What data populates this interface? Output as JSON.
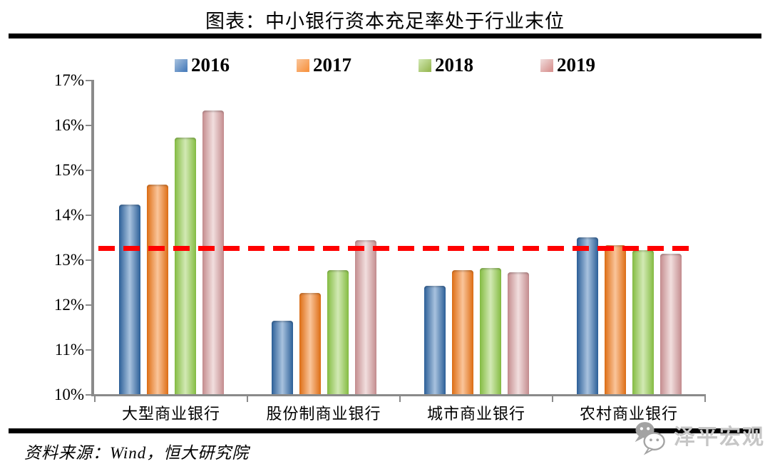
{
  "title": "图表：中小银行资本充足率处于行业末位",
  "source": "资料来源：Wind，恒大研究院",
  "watermark": "泽平宏观",
  "chart_data": {
    "type": "bar",
    "title": "图表：中小银行资本充足率处于行业末位",
    "categories": [
      "大型商业银行",
      "股份制商业银行",
      "城市商业银行",
      "农村商业银行"
    ],
    "series": [
      {
        "name": "2016",
        "color": "#4F81BD",
        "edge": "#2C5F98",
        "light": "#A8C2DE",
        "values": [
          14.23,
          11.63,
          12.42,
          13.5
        ]
      },
      {
        "name": "2017",
        "color": "#F79646",
        "edge": "#DD6D14",
        "light": "#FAC59A",
        "values": [
          14.66,
          12.26,
          12.76,
          13.32
        ]
      },
      {
        "name": "2018",
        "color": "#9BBB59",
        "edge": "#84BC42",
        "light": "#D2E9B4",
        "values": [
          15.72,
          12.77,
          12.81,
          13.21
        ]
      },
      {
        "name": "2019",
        "color": "#D99694",
        "edge": "#C48C8E",
        "light": "#F1DEDE",
        "values": [
          16.32,
          13.43,
          12.71,
          13.13
        ]
      }
    ],
    "xlabel": "",
    "ylabel": "",
    "ylim": [
      10,
      17
    ],
    "ytick_step": 1,
    "ytick_suffix": "%",
    "yticks": [
      "17%",
      "16%",
      "15%",
      "14%",
      "13%",
      "12%",
      "11%",
      "10%"
    ],
    "grid": false,
    "legend_position": "top",
    "axis_color": "#8a8a8a",
    "reference_line": {
      "value": 13.25,
      "color": "#FF0000",
      "style": "dashed"
    }
  }
}
